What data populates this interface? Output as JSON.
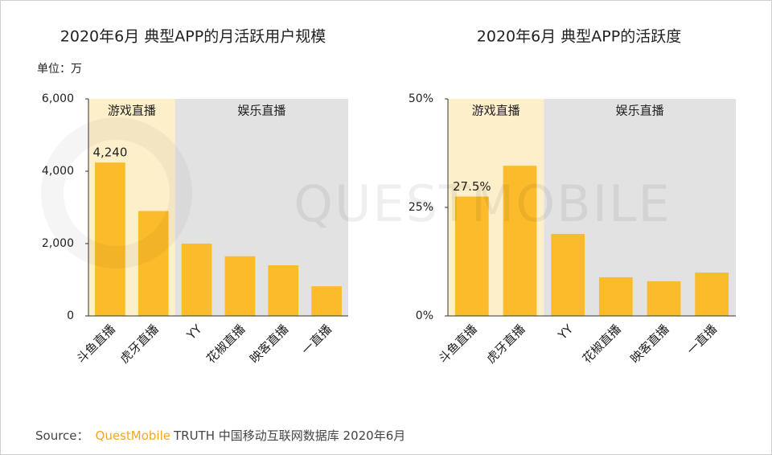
{
  "chart_data": [
    {
      "type": "bar",
      "title": "2020年6月 典型APP的月活跃用户规模",
      "unit": "单位：万",
      "categories": [
        "斗鱼直播",
        "虎牙直播",
        "YY",
        "花椒直播",
        "映客直播",
        "一直播"
      ],
      "values": [
        4240,
        2900,
        2000,
        1650,
        1400,
        820
      ],
      "value_labels": [
        "4,240",
        null,
        null,
        null,
        null,
        null
      ],
      "color": "#fcbb2b",
      "groups": [
        {
          "name": "游戏直播",
          "span": 2,
          "color": "#fdefc9"
        },
        {
          "name": "娱乐直播",
          "span": 4,
          "color": "#e2e2e2"
        }
      ],
      "ylim": [
        0,
        6000
      ],
      "yticks": [
        0,
        {
          "value": 2000,
          "label": "2,000"
        },
        {
          "value": 4000,
          "label": "4,000"
        },
        {
          "value": 6000,
          "label": "6,000"
        }
      ]
    },
    {
      "type": "bar",
      "title": "2020年6月 典型APP的活跃度",
      "categories": [
        "斗鱼直播",
        "虎牙直播",
        "YY",
        "花椒直播",
        "映客直播",
        "一直播"
      ],
      "values": [
        27.5,
        34.6,
        18.9,
        8.9,
        8.0,
        10.0
      ],
      "value_labels": [
        "27.5%",
        null,
        null,
        null,
        null,
        null
      ],
      "color": "#fcbb2b",
      "groups": [
        {
          "name": "游戏直播",
          "span": 2,
          "color": "#fdefc9"
        },
        {
          "name": "娱乐直播",
          "span": 4,
          "color": "#e2e2e2"
        }
      ],
      "ylim": [
        0,
        50
      ],
      "yticks": [
        {
          "value": 0,
          "label": "0%"
        },
        {
          "value": 25,
          "label": "25%"
        },
        {
          "value": 50,
          "label": "50%"
        }
      ]
    }
  ],
  "watermark": "QUESTMOBILE",
  "source": {
    "label": "Source：",
    "brand": "QuestMobile",
    "text": "TRUTH 中国移动互联网数据库 2020年6月"
  }
}
